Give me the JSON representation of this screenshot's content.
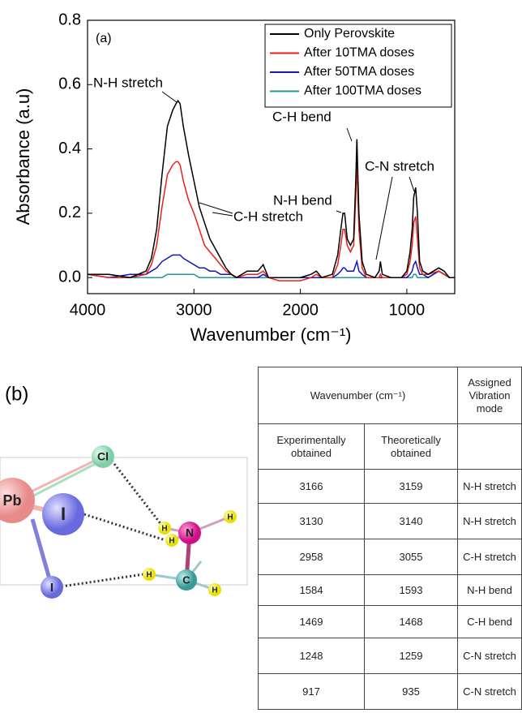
{
  "chart_data": {
    "type": "line",
    "x_label": "Wavenumber (cm⁻¹)",
    "y_label": "Absorbance (a.u)",
    "x": [
      4000,
      3800,
      3600,
      3450,
      3400,
      3350,
      3300,
      3250,
      3200,
      3170,
      3150,
      3130,
      3100,
      3050,
      3000,
      2950,
      2900,
      2850,
      2800,
      2750,
      2700,
      2650,
      2600,
      2500,
      2400,
      2350,
      2300,
      2200,
      2000,
      1900,
      1850,
      1800,
      1700,
      1650,
      1620,
      1600,
      1584,
      1560,
      1530,
      1500,
      1480,
      1469,
      1450,
      1420,
      1380,
      1300,
      1260,
      1248,
      1230,
      1150,
      1050,
      1000,
      970,
      950,
      935,
      917,
      900,
      880,
      850,
      800,
      700,
      650,
      600,
      550
    ],
    "series": [
      {
        "name": "Only Perovskite",
        "color": "#000000",
        "values": [
          0.01,
          0.01,
          0.0,
          0.02,
          0.06,
          0.15,
          0.32,
          0.47,
          0.52,
          0.54,
          0.55,
          0.54,
          0.47,
          0.38,
          0.3,
          0.22,
          0.17,
          0.12,
          0.09,
          0.06,
          0.03,
          0.01,
          0.0,
          0.02,
          0.02,
          0.04,
          0.0,
          0.0,
          0.0,
          0.01,
          0.02,
          0.0,
          0.01,
          0.07,
          0.15,
          0.2,
          0.2,
          0.12,
          0.1,
          0.12,
          0.3,
          0.43,
          0.2,
          0.05,
          0.01,
          0.0,
          0.02,
          0.05,
          0.01,
          0.0,
          0.0,
          0.02,
          0.08,
          0.15,
          0.25,
          0.28,
          0.2,
          0.05,
          0.02,
          0.01,
          0.03,
          0.02,
          0.0,
          0.0
        ]
      },
      {
        "name": "After 10TMA doses",
        "color": "#e8201c",
        "values": [
          0.01,
          0.0,
          0.0,
          0.01,
          0.04,
          0.1,
          0.22,
          0.32,
          0.35,
          0.36,
          0.36,
          0.35,
          0.3,
          0.24,
          0.2,
          0.15,
          0.1,
          0.08,
          0.06,
          0.04,
          0.02,
          0.01,
          0.0,
          0.01,
          0.01,
          0.02,
          0.0,
          -0.01,
          -0.01,
          0.0,
          0.01,
          0.0,
          0.0,
          0.04,
          0.1,
          0.15,
          0.15,
          0.1,
          0.08,
          0.1,
          0.25,
          0.36,
          0.15,
          0.03,
          0.0,
          0.0,
          0.0,
          0.01,
          0.0,
          0.0,
          0.0,
          0.01,
          0.05,
          0.1,
          0.17,
          0.19,
          0.12,
          0.03,
          0.01,
          0.01,
          0.02,
          0.01,
          0.0,
          0.0
        ]
      },
      {
        "name": "After 50TMA doses",
        "color": "#1414c8",
        "values": [
          0.01,
          0.0,
          0.01,
          0.01,
          0.02,
          0.03,
          0.05,
          0.06,
          0.07,
          0.07,
          0.07,
          0.07,
          0.06,
          0.05,
          0.04,
          0.03,
          0.03,
          0.02,
          0.02,
          0.01,
          0.01,
          0.01,
          0.0,
          0.0,
          0.0,
          0.01,
          0.0,
          0.0,
          0.0,
          0.0,
          0.0,
          0.0,
          0.0,
          0.01,
          0.02,
          0.03,
          0.03,
          0.02,
          0.02,
          0.02,
          0.04,
          0.05,
          0.02,
          0.01,
          0.0,
          0.0,
          0.0,
          0.0,
          0.0,
          0.0,
          0.0,
          0.0,
          0.01,
          0.02,
          0.04,
          0.05,
          0.03,
          0.01,
          0.01,
          0.0,
          0.02,
          0.01,
          0.0,
          0.0
        ]
      },
      {
        "name": "After 100TMA doses",
        "color": "#1f9a98",
        "values": [
          0.01,
          0.01,
          0.0,
          0.0,
          0.0,
          0.0,
          0.0,
          0.01,
          0.01,
          0.01,
          0.01,
          0.01,
          0.01,
          0.01,
          0.01,
          0.0,
          0.0,
          0.0,
          0.0,
          0.0,
          0.0,
          0.0,
          0.0,
          0.0,
          0.0,
          0.0,
          0.0,
          0.0,
          0.0,
          0.0,
          0.0,
          0.0,
          0.0,
          0.0,
          0.0,
          0.0,
          0.0,
          0.0,
          0.0,
          0.0,
          0.0,
          0.0,
          0.0,
          0.0,
          0.0,
          0.0,
          0.0,
          0.0,
          0.0,
          0.0,
          0.0,
          0.0,
          0.0,
          0.0,
          0.01,
          0.01,
          0.0,
          0.0,
          0.0,
          0.0,
          0.02,
          0.01,
          0.0,
          0.0
        ]
      }
    ],
    "xlim": [
      4000,
      550
    ],
    "ylim": [
      -0.05,
      0.8
    ],
    "xticks": [
      4000,
      3000,
      2000,
      1000
    ],
    "yticks": [
      {
        "value": 0,
        "label": "0.0"
      },
      0.2,
      0.4,
      0.6,
      0.8
    ],
    "legend": "upper right",
    "annotations": [
      "(a)",
      "N-H stretch",
      "C-H stretch",
      "N-H bend",
      "C-H bend",
      "C-N stretch"
    ]
  },
  "panel_b": {
    "label": "(b)",
    "molecule": {
      "atoms": [
        "Cl",
        "Pb",
        "I",
        "I",
        "N",
        "C",
        "H",
        "H",
        "H",
        "H",
        "H"
      ]
    },
    "table": {
      "header": [
        "Wavenumber (cm⁻¹)",
        "Assigned Vibration mode"
      ],
      "subheader": [
        "Experimentally obtained",
        "Theoretically obtained"
      ],
      "rows": [
        [
          3166,
          3159,
          "N-H stretch"
        ],
        [
          3130,
          3140,
          "N-H stretch"
        ],
        [
          2958,
          3055,
          "C-H stretch"
        ],
        [
          1584,
          1593,
          "N-H bend"
        ],
        [
          1469,
          1468,
          "C-H bend"
        ],
        [
          1248,
          1259,
          "C-N stretch"
        ],
        [
          917,
          935,
          "C-N stretch"
        ]
      ]
    }
  }
}
